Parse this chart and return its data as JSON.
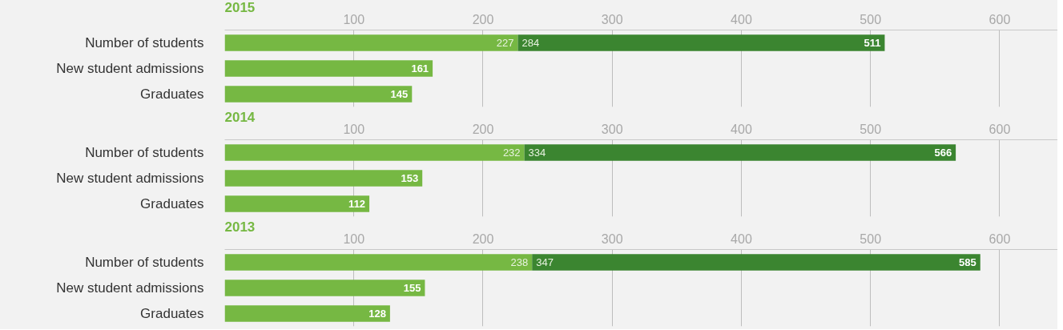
{
  "chart_data": [
    {
      "type": "bar",
      "orientation": "horizontal",
      "stacked": true,
      "title": "2015",
      "categories": [
        "Number of students",
        "New student admissions",
        "Graduates"
      ],
      "series": [
        {
          "color": "#76b843",
          "values": [
            227,
            161,
            145
          ],
          "value_labels": [
            "227",
            "161",
            "145"
          ]
        },
        {
          "color": "#3b8530",
          "values": [
            284,
            null,
            null
          ],
          "value_labels": [
            "284",
            null,
            null
          ]
        }
      ],
      "totals": [
        "511",
        null,
        null
      ],
      "xlim": [
        0,
        645
      ],
      "xticks": [
        100,
        200,
        300,
        400,
        500,
        600
      ],
      "grid": "x"
    },
    {
      "type": "bar",
      "orientation": "horizontal",
      "stacked": true,
      "title": "2014",
      "categories": [
        "Number of students",
        "New student admissions",
        "Graduates"
      ],
      "series": [
        {
          "color": "#76b843",
          "values": [
            232,
            153,
            112
          ],
          "value_labels": [
            "232",
            "153",
            "112"
          ]
        },
        {
          "color": "#3b8530",
          "values": [
            334,
            null,
            null
          ],
          "value_labels": [
            "334",
            null,
            null
          ]
        }
      ],
      "totals": [
        "566",
        null,
        null
      ],
      "xlim": [
        0,
        645
      ],
      "xticks": [
        100,
        200,
        300,
        400,
        500,
        600
      ],
      "grid": "x"
    },
    {
      "type": "bar",
      "orientation": "horizontal",
      "stacked": true,
      "title": "2013",
      "categories": [
        "Number of students",
        "New student admissions",
        "Graduates"
      ],
      "series": [
        {
          "color": "#76b843",
          "values": [
            238,
            155,
            128
          ],
          "value_labels": [
            "238",
            "155",
            "128"
          ]
        },
        {
          "color": "#3b8530",
          "values": [
            347,
            null,
            null
          ],
          "value_labels": [
            "347",
            null,
            null
          ]
        }
      ],
      "totals": [
        "585",
        null,
        null
      ],
      "xlim": [
        0,
        645
      ],
      "xticks": [
        100,
        200,
        300,
        400,
        500,
        600
      ],
      "grid": "x"
    }
  ]
}
